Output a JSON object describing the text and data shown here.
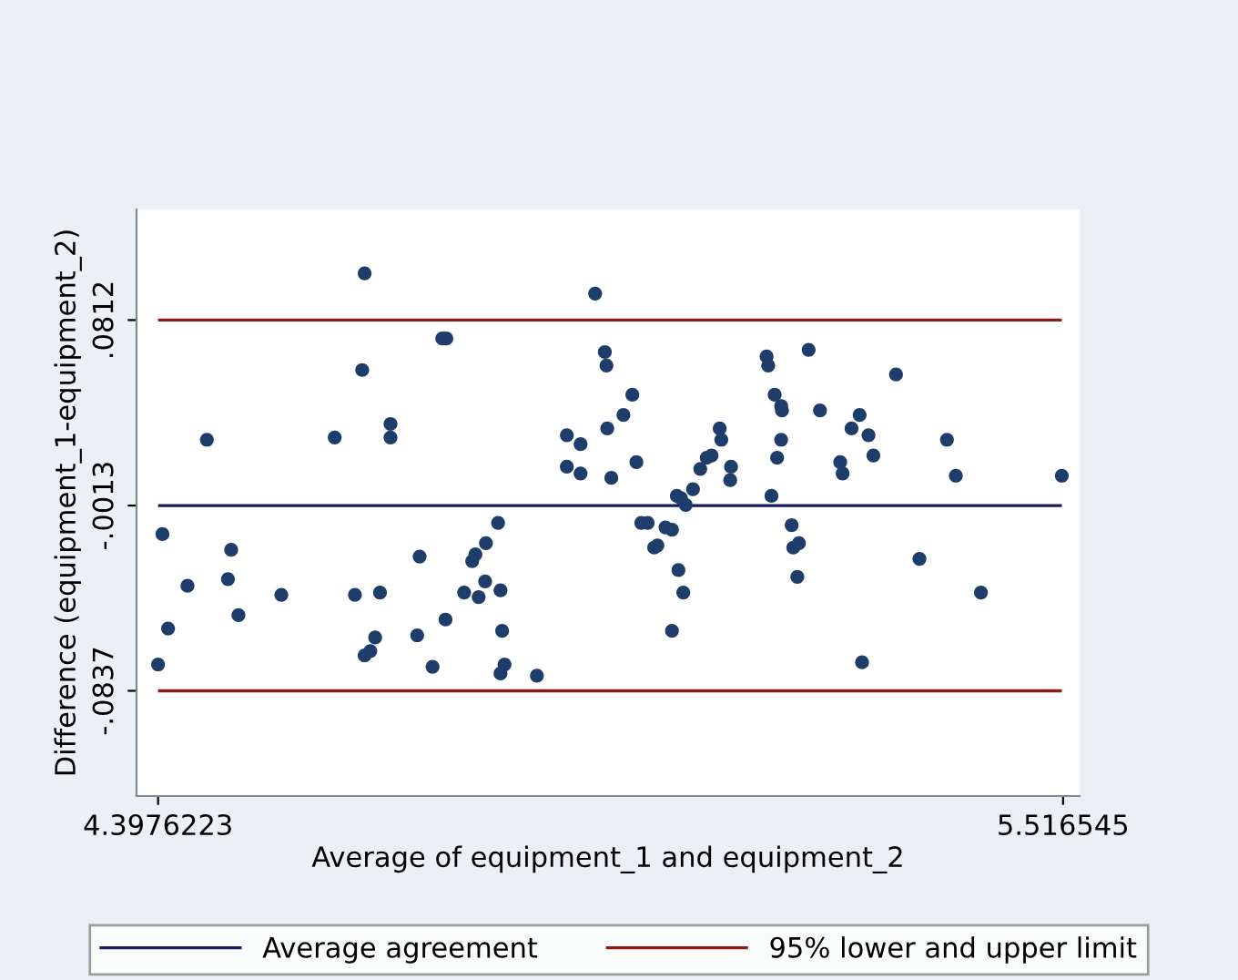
{
  "chart_data": {
    "type": "scatter",
    "xlabel": "Average of equipment_1 and equipment_2",
    "ylabel": "Difference (equipment_1-equipment_2)",
    "xlim": [
      4.371,
      5.537
    ],
    "ylim": [
      -0.1305,
      0.1304
    ],
    "xticks": [
      {
        "value": 4.3976223,
        "label": "4.3976223"
      },
      {
        "value": 5.516545,
        "label": "5.516545"
      }
    ],
    "yticks": [
      {
        "value": -0.0837,
        "label": "-.0837"
      },
      {
        "value": -0.0013,
        "label": "-.0013"
      },
      {
        "value": 0.0812,
        "label": ".0812"
      }
    ],
    "marker": "circle",
    "grid": false,
    "legend": "bottom",
    "ref_lines": [
      {
        "axis": "y",
        "value": -0.0013,
        "label": "Average agreement",
        "color": "#1a1a5e"
      },
      {
        "axis": "y",
        "value": 0.0812,
        "label": "95% lower and upper limit",
        "color": "#8b1a1a"
      },
      {
        "axis": "y",
        "value": -0.0837,
        "color": "#8b1a1a"
      }
    ],
    "series": [
      {
        "color": "#1f3d6b",
        "x": [
          4.653,
          4.749,
          4.754,
          4.65,
          4.685,
          4.685,
          4.458,
          4.616,
          4.403,
          4.488,
          4.434,
          4.484,
          4.497,
          4.55,
          4.41,
          4.3976,
          4.641,
          4.672,
          4.666,
          4.66,
          4.653,
          4.721,
          4.718,
          4.753,
          4.737,
          4.818,
          4.803,
          4.79,
          4.786,
          4.802,
          4.776,
          4.794,
          4.821,
          4.823,
          4.826,
          4.821,
          4.866,
          4.938,
          4.95,
          4.952,
          4.984,
          4.973,
          4.953,
          4.903,
          4.92,
          4.903,
          4.92,
          4.958,
          4.989,
          5.092,
          5.094,
          5.082,
          5.076,
          5.068,
          5.106,
          5.105,
          5.059,
          5.039,
          5.044,
          5.05,
          4.995,
          5.003,
          5.025,
          5.033,
          5.015,
          5.011,
          5.041,
          5.047,
          5.033,
          5.15,
          5.152,
          5.202,
          5.16,
          5.168,
          5.169,
          5.216,
          5.168,
          5.163,
          5.156,
          5.181,
          5.183,
          5.19,
          5.188,
          5.265,
          5.255,
          5.276,
          5.241,
          5.244,
          5.282,
          5.31,
          5.268,
          5.339,
          5.373,
          5.384,
          5.415,
          5.515
        ],
        "values": [
          0.102,
          0.073,
          0.073,
          0.059,
          0.035,
          0.029,
          0.028,
          0.029,
          -0.014,
          -0.021,
          -0.037,
          -0.034,
          -0.05,
          -0.041,
          -0.056,
          -0.072,
          -0.041,
          -0.04,
          -0.06,
          -0.066,
          -0.068,
          -0.024,
          -0.059,
          -0.052,
          -0.073,
          -0.009,
          -0.018,
          -0.023,
          -0.026,
          -0.035,
          -0.04,
          -0.042,
          -0.039,
          -0.057,
          -0.072,
          -0.076,
          -0.077,
          0.093,
          0.067,
          0.061,
          0.048,
          0.039,
          0.033,
          0.03,
          0.026,
          0.016,
          0.013,
          0.011,
          0.018,
          0.033,
          0.028,
          0.021,
          0.02,
          0.015,
          0.016,
          0.01,
          0.006,
          0.003,
          0.002,
          -0.001,
          -0.009,
          -0.009,
          -0.011,
          -0.012,
          -0.019,
          -0.02,
          -0.03,
          -0.04,
          -0.057,
          0.065,
          0.061,
          0.068,
          0.048,
          0.043,
          0.041,
          0.041,
          0.028,
          0.02,
          0.003,
          -0.01,
          -0.02,
          -0.018,
          -0.033,
          0.039,
          0.033,
          0.03,
          0.018,
          0.013,
          0.021,
          0.057,
          -0.071,
          -0.025,
          0.028,
          0.012,
          -0.04,
          0.012
        ]
      }
    ]
  }
}
